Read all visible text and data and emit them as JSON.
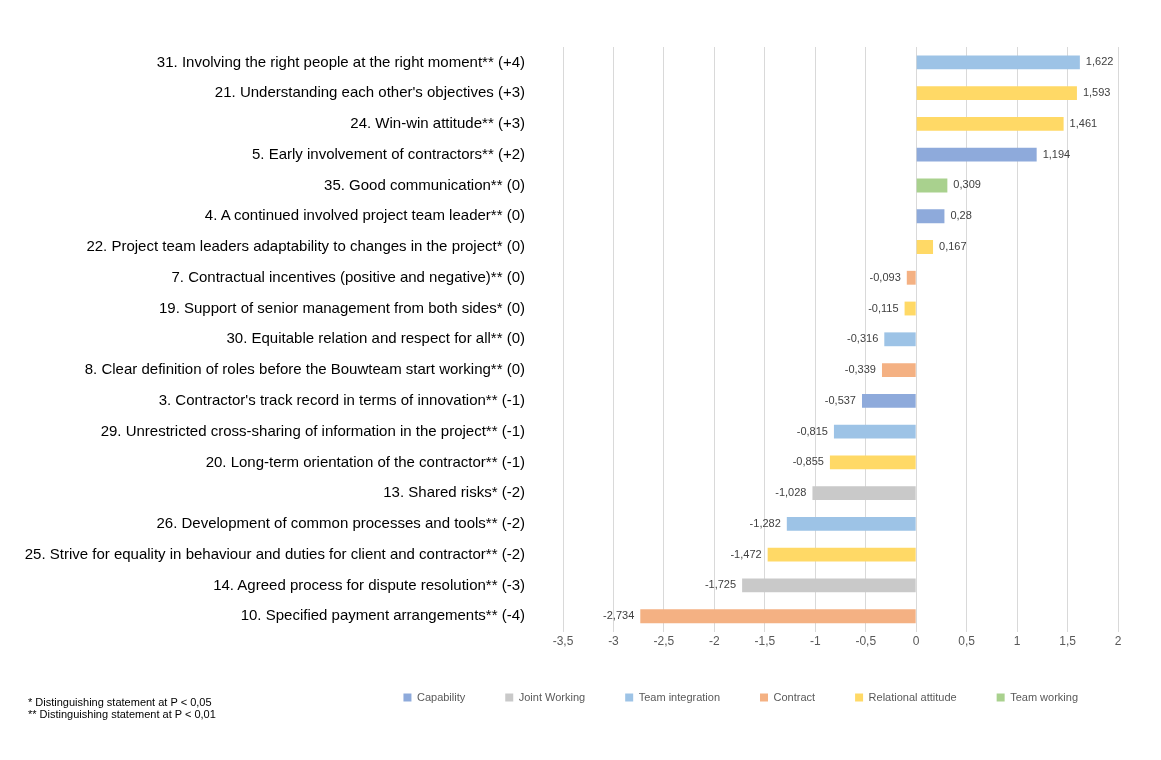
{
  "chart_data": {
    "type": "bar",
    "orientation": "horizontal",
    "stacked": true,
    "categories": [
      "31. Involving the right people at the right moment** (+4)",
      "21. Understanding each other's objectives (+3)",
      "24. Win-win attitude** (+3)",
      "5. Early involvement of contractors** (+2)",
      "35. Good communication** (0)",
      "4. A continued involved project team leader** (0)",
      "22. Project team leaders adaptability to changes in the project* (0)",
      "7. Contractual incentives (positive and negative)** (0)",
      "19. Support of senior management from both sides* (0)",
      "30. Equitable relation and respect for all** (0)",
      "8. Clear definition of roles before the Bouwteam start working** (0)",
      "3. Contractor's track record in terms of innovation** (-1)",
      "29. Unrestricted cross-sharing of information in the project** (-1)",
      "20. Long-term orientation of the contractor** (-1)",
      "13. Shared risks* (-2)",
      "26. Development of common processes and tools** (-2)",
      "25. Strive for equality in behaviour and duties for client and contractor** (-2)",
      "14. Agreed process for dispute resolution** (-3)",
      "10. Specified payment arrangements** (-4)"
    ],
    "series": [
      {
        "name": "Capability",
        "color": "#8eaadb",
        "values": [
          null,
          null,
          null,
          1.194,
          null,
          0.28,
          null,
          null,
          null,
          null,
          null,
          -0.537,
          null,
          null,
          null,
          null,
          null,
          null,
          null
        ],
        "value_labels": [
          null,
          null,
          null,
          "1,194",
          null,
          "0,28",
          null,
          null,
          null,
          null,
          null,
          "-0,537",
          null,
          null,
          null,
          null,
          null,
          null,
          null
        ]
      },
      {
        "name": "Joint Working",
        "color": "#c9c9c9",
        "values": [
          null,
          null,
          null,
          null,
          null,
          null,
          null,
          null,
          null,
          null,
          null,
          null,
          null,
          null,
          -1.028,
          null,
          null,
          -1.725,
          null
        ],
        "value_labels": [
          null,
          null,
          null,
          null,
          null,
          null,
          null,
          null,
          null,
          null,
          null,
          null,
          null,
          null,
          "-1,028",
          null,
          null,
          "-1,725",
          null
        ]
      },
      {
        "name": "Team integration",
        "color": "#9dc3e6",
        "values": [
          1.622,
          null,
          null,
          null,
          null,
          null,
          null,
          null,
          null,
          -0.316,
          null,
          null,
          -0.815,
          null,
          null,
          -1.282,
          null,
          null,
          null
        ],
        "value_labels": [
          "1,622",
          null,
          null,
          null,
          null,
          null,
          null,
          null,
          null,
          "-0,316",
          null,
          null,
          "-0,815",
          null,
          null,
          "-1,282",
          null,
          null,
          null
        ]
      },
      {
        "name": "Contract",
        "color": "#f4b183",
        "values": [
          null,
          null,
          null,
          null,
          null,
          null,
          null,
          -0.093,
          null,
          null,
          -0.339,
          null,
          null,
          null,
          null,
          null,
          null,
          null,
          -2.734
        ],
        "value_labels": [
          null,
          null,
          null,
          null,
          null,
          null,
          null,
          "-0,093",
          null,
          null,
          "-0,339",
          null,
          null,
          null,
          null,
          null,
          null,
          null,
          "-2,734"
        ]
      },
      {
        "name": "Relational attitude",
        "color": "#ffd966",
        "values": [
          null,
          1.593,
          1.461,
          null,
          null,
          null,
          0.167,
          null,
          -0.115,
          null,
          null,
          null,
          null,
          -0.855,
          null,
          null,
          -1.472,
          null,
          null
        ],
        "value_labels": [
          null,
          "1,593",
          "1,461",
          null,
          null,
          null,
          "0,167",
          null,
          "-0,115",
          null,
          null,
          null,
          null,
          "-0,855",
          null,
          null,
          "-1,472",
          null,
          null
        ]
      },
      {
        "name": "Team working",
        "color": "#a9d18e",
        "values": [
          null,
          null,
          null,
          null,
          0.309,
          null,
          null,
          null,
          null,
          null,
          null,
          null,
          null,
          null,
          null,
          null,
          null,
          null,
          null
        ],
        "value_labels": [
          null,
          null,
          null,
          null,
          "0,309",
          null,
          null,
          null,
          null,
          null,
          null,
          null,
          null,
          null,
          null,
          null,
          null,
          null,
          null
        ]
      }
    ],
    "xlim": [
      -3.5,
      2
    ],
    "xticks": [
      {
        "value": -3.5,
        "label": "-3,5"
      },
      -3,
      {
        "value": -2.5,
        "label": "-2,5"
      },
      -2,
      {
        "value": -1.5,
        "label": "-1,5"
      },
      -1,
      {
        "value": -0.5,
        "label": "-0,5"
      },
      0,
      {
        "value": 0.5,
        "label": "0,5"
      },
      1,
      {
        "value": 1.5,
        "label": "1,5"
      },
      2
    ],
    "grid": "x",
    "legend": "bottom",
    "annotations": [
      "* Distinguishing statement at P < 0,05",
      "** Distinguishing statement at P < 0,01"
    ]
  }
}
